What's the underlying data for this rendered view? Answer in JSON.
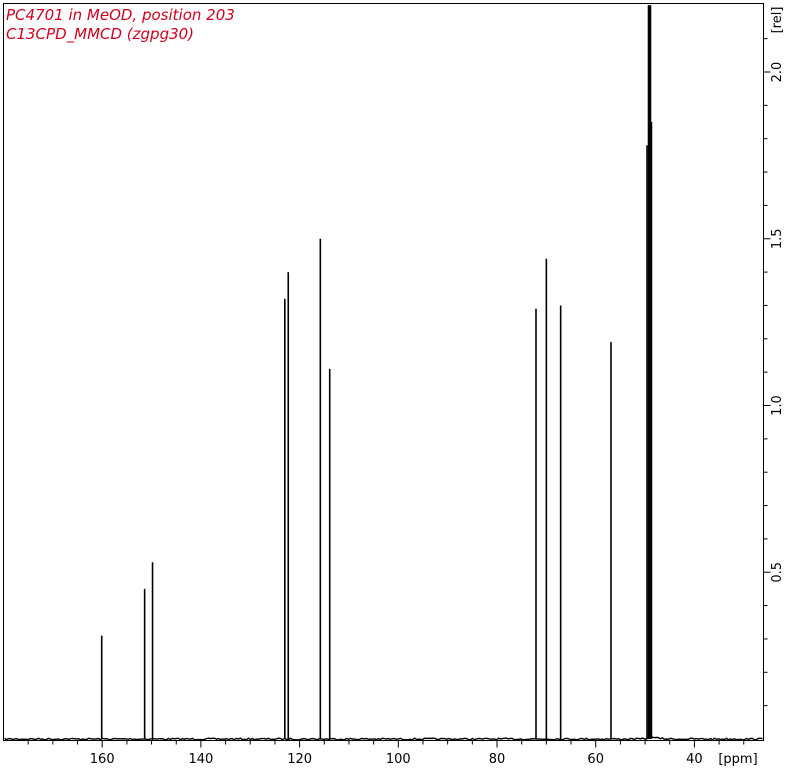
{
  "chart_data": {
    "type": "line",
    "title_lines": [
      "PC4701 in MeOD, position 203",
      "C13CPD_MMCD (zgpg30)"
    ],
    "title_color": "#d6001c",
    "line_color": "#000000",
    "frame_color": "#000000",
    "xlabel": "[ppm]",
    "ylabel": "[rel]",
    "x_reversed": true,
    "xlim": [
      180,
      26
    ],
    "ylim": [
      0,
      2.2
    ],
    "x_ticks": [
      160,
      140,
      120,
      100,
      80,
      60,
      40
    ],
    "y_ticks": [
      0.5,
      1.0,
      1.5,
      2.0
    ],
    "y_tick_labels": [
      "0.5",
      "1.0",
      "1.5",
      "2.0"
    ],
    "grid": false,
    "peaks": [
      {
        "ppm": 160.1,
        "height": 0.31
      },
      {
        "ppm": 151.4,
        "height": 0.45
      },
      {
        "ppm": 149.8,
        "height": 0.53
      },
      {
        "ppm": 123.0,
        "height": 1.32
      },
      {
        "ppm": 122.3,
        "height": 1.4
      },
      {
        "ppm": 115.8,
        "height": 1.5
      },
      {
        "ppm": 113.9,
        "height": 1.11
      },
      {
        "ppm": 72.1,
        "height": 1.29
      },
      {
        "ppm": 70.0,
        "height": 1.44
      },
      {
        "ppm": 67.1,
        "height": 1.3
      },
      {
        "ppm": 56.9,
        "height": 1.19
      },
      {
        "ppm": 49.6,
        "height": 1.78
      },
      {
        "ppm": 49.3,
        "height": 2.2
      },
      {
        "ppm": 49.1,
        "height": 2.2
      },
      {
        "ppm": 48.9,
        "height": 2.2
      },
      {
        "ppm": 48.7,
        "height": 1.85
      }
    ]
  }
}
